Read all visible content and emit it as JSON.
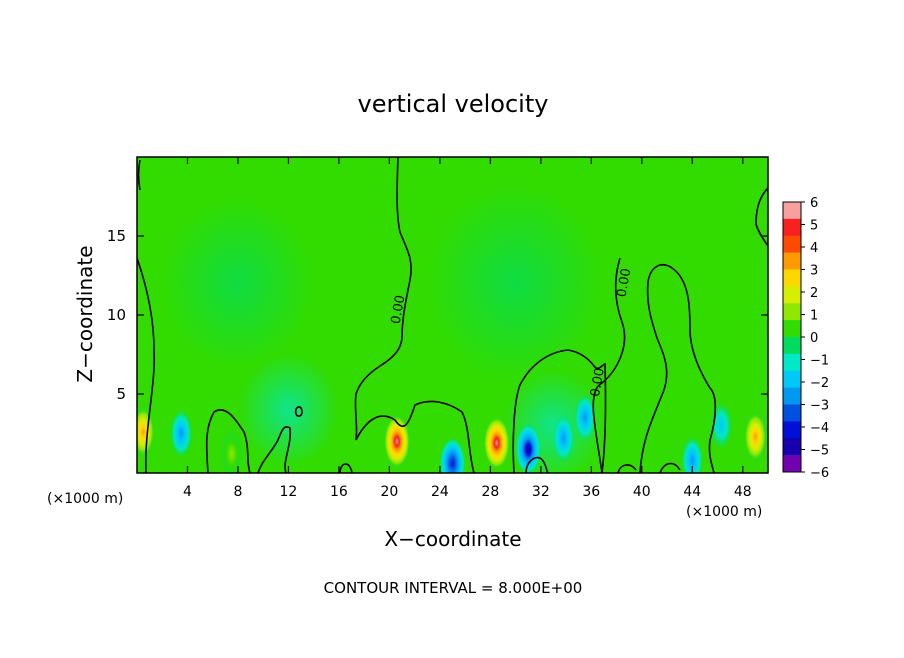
{
  "chart_data": {
    "type": "heatmap",
    "title": "vertical velocity",
    "xlabel": "X−coordinate",
    "ylabel": "Z−coordinate",
    "x_unit_left": "(×1000 m)",
    "x_unit_right": "(×1000 m)",
    "footnote": "CONTOUR INTERVAL = 8.000E+00",
    "xlim": [
      0,
      50
    ],
    "ylim": [
      0,
      20
    ],
    "x_ticks": [
      4,
      8,
      12,
      16,
      20,
      24,
      28,
      32,
      36,
      40,
      44,
      48
    ],
    "x_tick_labels": [
      "4",
      "8",
      "12",
      "16",
      "20",
      "24",
      "28",
      "32",
      "36",
      "40",
      "44",
      "48"
    ],
    "y_ticks": [
      5,
      10,
      15
    ],
    "y_tick_labels": [
      "5",
      "10",
      "15"
    ],
    "grid": false,
    "contour_labels": [
      {
        "text": "0.00",
        "x": 21.0,
        "y": 10.3
      },
      {
        "text": "0.00",
        "x": 36.8,
        "y": 5.7
      },
      {
        "text": "0.00",
        "x": 38.9,
        "y": 12.0
      }
    ],
    "colorbar": {
      "ticks": [
        6,
        5,
        4,
        3,
        2,
        1,
        0,
        -1,
        -2,
        -3,
        -4,
        -5,
        -6
      ],
      "tick_labels": [
        "6",
        "5",
        "4",
        "3",
        "2",
        "1",
        "0",
        "−1",
        "−2",
        "−3",
        "−4",
        "−5",
        "−6"
      ],
      "colors_top_to_bottom": [
        "#f8a0a0",
        "#f82020",
        "#ff4a00",
        "#ff9a00",
        "#ffd800",
        "#d8ee00",
        "#90e800",
        "#32dc00",
        "#00dc60",
        "#00e8c8",
        "#00c8f8",
        "#0098f0",
        "#0050e0",
        "#0010d8",
        "#1800b0",
        "#7000b0"
      ]
    },
    "features": [
      {
        "kind": "updraft",
        "x": 20.6,
        "z": 2.0,
        "peak": 6.0
      },
      {
        "kind": "updraft",
        "x": 28.5,
        "z": 1.9,
        "peak": 6.0
      },
      {
        "kind": "updraft",
        "x": 0.5,
        "z": 2.6,
        "peak": 3.5
      },
      {
        "kind": "updraft",
        "x": 49.0,
        "z": 2.3,
        "peak": 3.8
      },
      {
        "kind": "updraft",
        "x": 7.5,
        "z": 1.2,
        "peak": 1.5
      },
      {
        "kind": "downdraft",
        "x": 31.0,
        "z": 1.5,
        "peak": -5.0
      },
      {
        "kind": "downdraft",
        "x": 25.0,
        "z": 0.6,
        "peak": -4.5
      },
      {
        "kind": "downdraft",
        "x": 35.5,
        "z": 3.5,
        "peak": -3.0
      },
      {
        "kind": "downdraft",
        "x": 3.5,
        "z": 2.5,
        "peak": -2.8
      },
      {
        "kind": "downdraft",
        "x": 33.8,
        "z": 2.2,
        "peak": -2.8
      },
      {
        "kind": "downdraft",
        "x": 46.3,
        "z": 3.0,
        "peak": -2.0
      },
      {
        "kind": "downdraft",
        "x": 44.0,
        "z": 0.8,
        "peak": -2.5
      }
    ]
  }
}
